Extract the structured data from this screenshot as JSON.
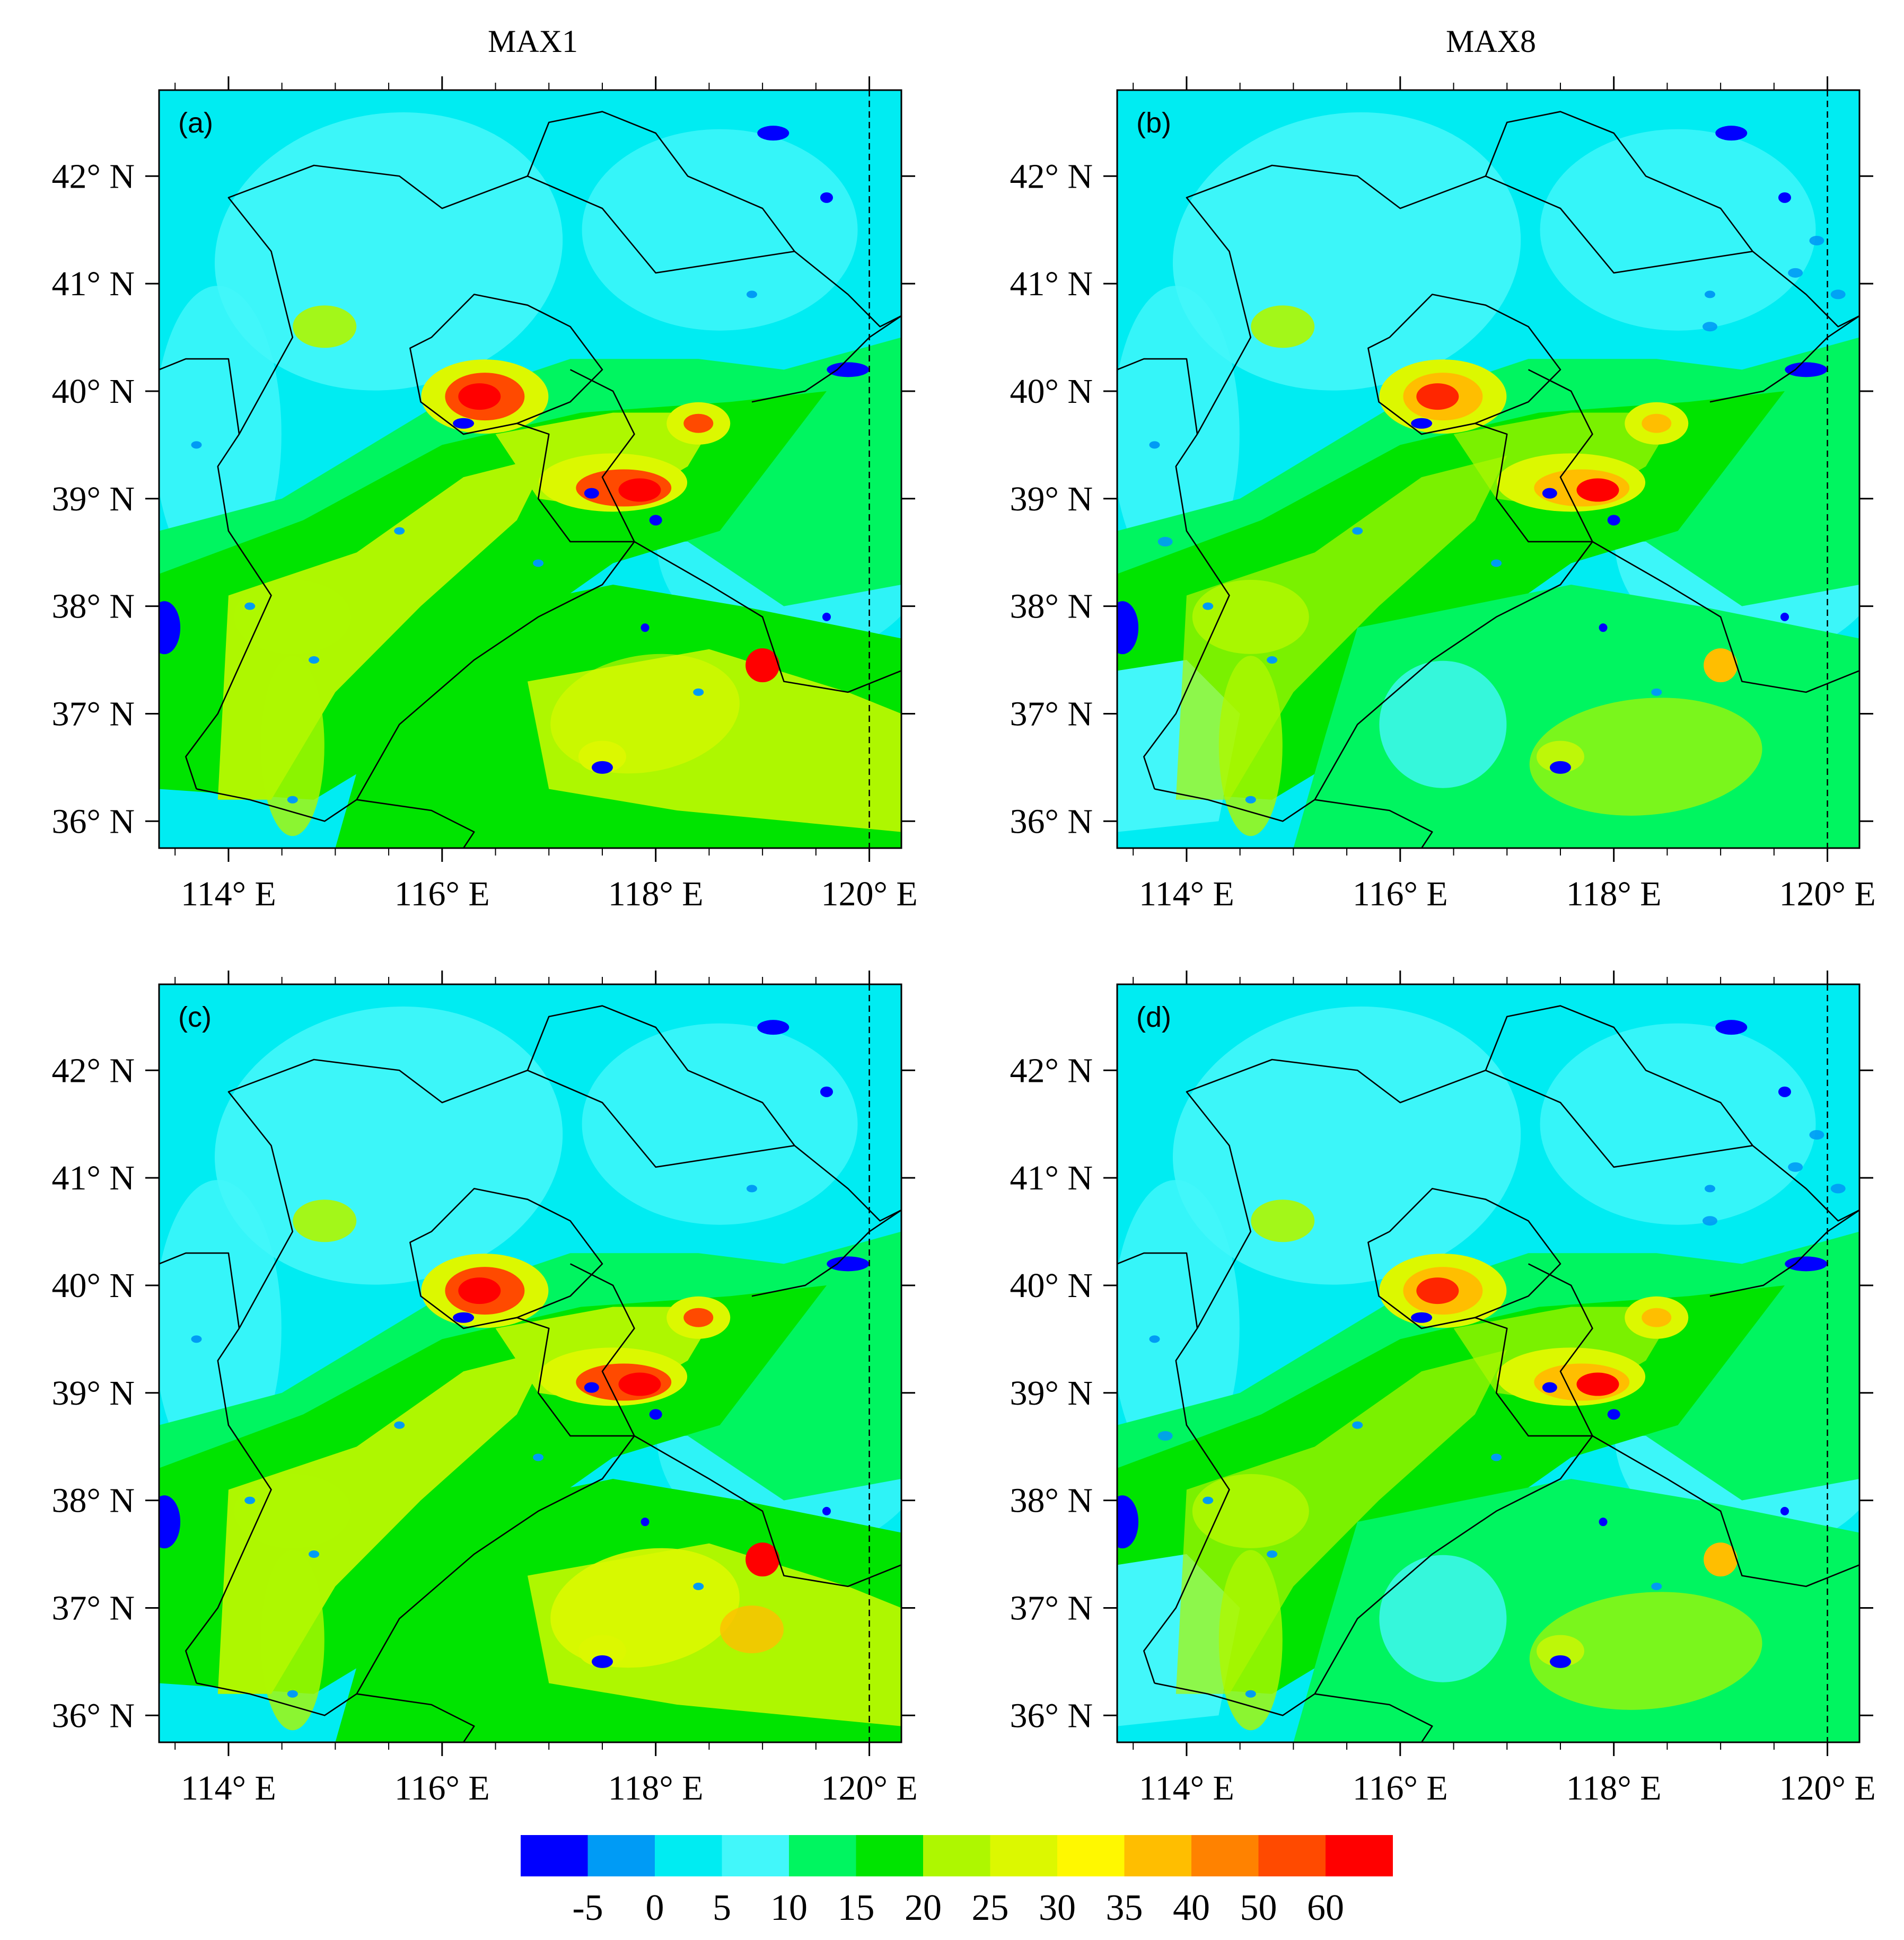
{
  "column_titles": [
    "MAX1",
    "MAX8"
  ],
  "panels": [
    {
      "id": "a",
      "label": "(a)",
      "column": "MAX1",
      "variant": "max1_a"
    },
    {
      "id": "b",
      "label": "(b)",
      "column": "MAX8",
      "variant": "max8_b"
    },
    {
      "id": "c",
      "label": "(c)",
      "column": "MAX1",
      "variant": "max1_c"
    },
    {
      "id": "d",
      "label": "(d)",
      "column": "MAX8",
      "variant": "max8_d"
    }
  ],
  "axes": {
    "lon_range": [
      113.35,
      120.3
    ],
    "lat_range": [
      35.75,
      42.8
    ],
    "lon_ticks": [
      114,
      116,
      118,
      120
    ],
    "lat_ticks": [
      36,
      37,
      38,
      39,
      40,
      41,
      42
    ],
    "lon_tick_labels": [
      "114° E",
      "116° E",
      "118° E",
      "120° E"
    ],
    "lat_tick_labels": [
      "36° N",
      "37° N",
      "38° N",
      "39° N",
      "40° N",
      "41° N",
      "42° N"
    ],
    "minor_lon_ticks": [
      113.5,
      114.5,
      115,
      115.5,
      116.5,
      117,
      117.5,
      118.5,
      119,
      119.5
    ],
    "dashed_meridian_lon": 120
  },
  "colorbar": {
    "levels": [
      "-5",
      "0",
      "5",
      "10",
      "15",
      "20",
      "25",
      "30",
      "35",
      "40",
      "50",
      "60"
    ],
    "colors": [
      "#0000ff",
      "#009bf5",
      "#00ecf2",
      "#42f7fa",
      "#00f560",
      "#00e400",
      "#aef700",
      "#dcf800",
      "#fff800",
      "#ffbe00",
      "#ff8200",
      "#ff4a00",
      "#ff0000"
    ]
  },
  "region_palette": {
    "background": "#00ecf2",
    "low": "#42f7fa",
    "mid": "#00f560",
    "green": "#00e400",
    "yellowgreen": "#aef700",
    "yellow": "#dcf800",
    "hot": "#ffbe00",
    "hotter": "#ff4a00",
    "max": "#ff0000",
    "neg": "#0000ff",
    "negpale": "#009bf5"
  }
}
